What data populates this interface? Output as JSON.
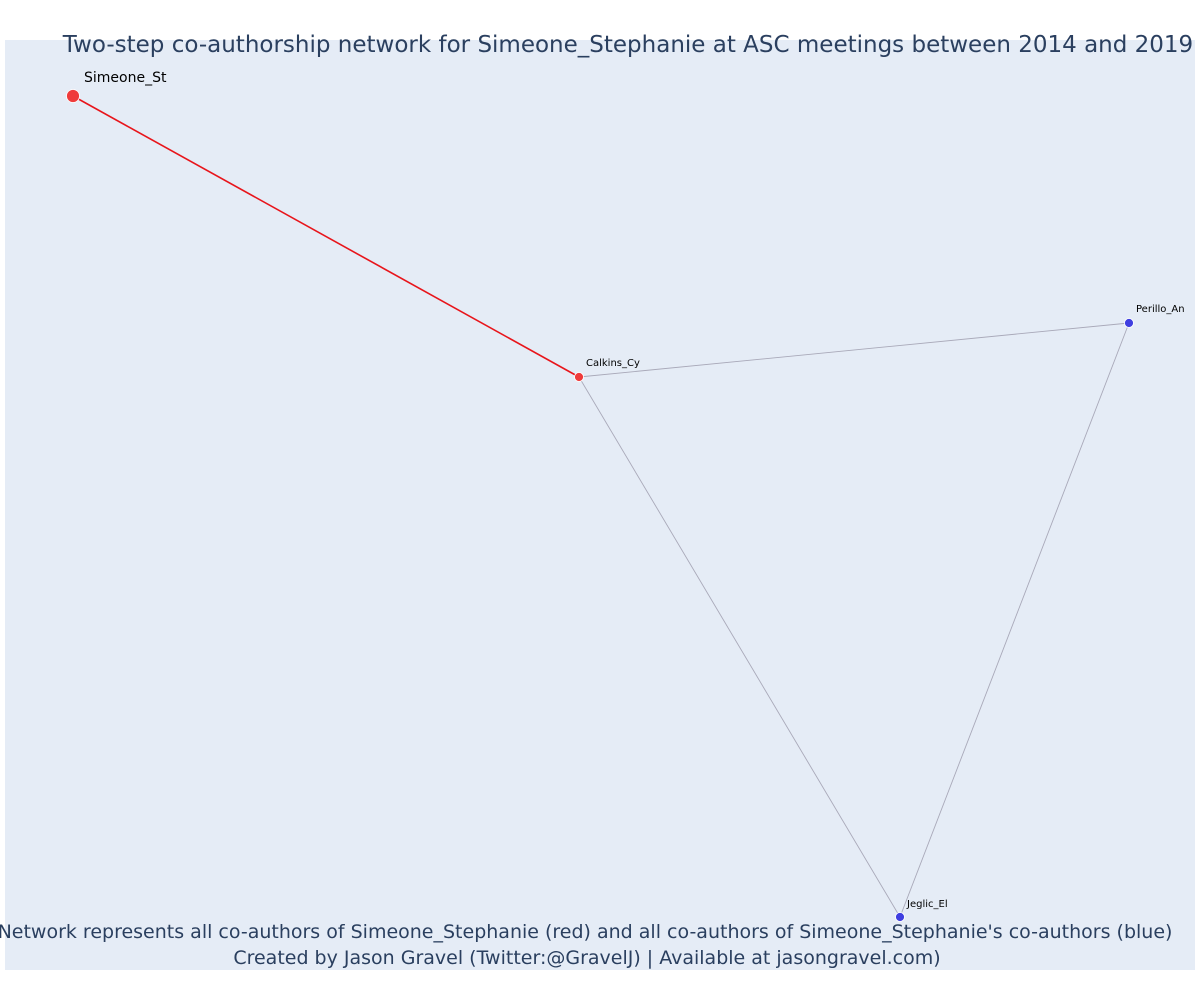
{
  "figure": {
    "title": "Two-step co-authorship network for Simeone_Stephanie at ASC meetings between 2014 and 2019",
    "caption_line1": "Network represents all co-authors of Simeone_Stephanie (red) and all co-authors of Simeone_Stephanie's co-authors (blue)",
    "caption_line2": "Created by Jason Gravel (Twitter:@GravelJ) | Available at jasongravel.com)"
  },
  "colors": {
    "plot_background": "#E5ECF6",
    "focal_red": "#EF3B3B",
    "coauthor_red": "#EF3B3B",
    "second_step_blue": "#3F3FE0",
    "red_edge": "#E8151B",
    "grey_edge": "#A9A9B9",
    "text": "#2a3f5f"
  },
  "network": {
    "nodes": [
      {
        "id": "Simeone_St",
        "label": "Simeone_St",
        "group": "focal",
        "color": "red"
      },
      {
        "id": "Calkins_Cy",
        "label": "Calkins_Cy",
        "group": "co-author",
        "color": "red"
      },
      {
        "id": "Perillo_An",
        "label": "Perillo_An",
        "group": "co-author of co-author",
        "color": "blue"
      },
      {
        "id": "Jeglic_El",
        "label": "Jeglic_El",
        "group": "co-author of co-author",
        "color": "blue"
      }
    ],
    "edges": [
      {
        "source": "Simeone_St",
        "target": "Calkins_Cy",
        "color": "red"
      },
      {
        "source": "Calkins_Cy",
        "target": "Perillo_An",
        "color": "grey"
      },
      {
        "source": "Calkins_Cy",
        "target": "Jeglic_El",
        "color": "grey"
      },
      {
        "source": "Perillo_An",
        "target": "Jeglic_El",
        "color": "grey"
      }
    ]
  }
}
